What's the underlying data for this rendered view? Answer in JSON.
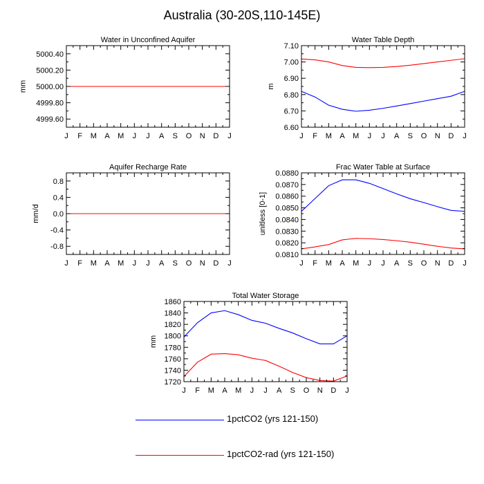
{
  "title": "Australia (30-20S,110-145E)",
  "colors": {
    "series1": "#0000ff",
    "series2": "#ff0000"
  },
  "legend": [
    {
      "label": "1pctCO2 (yrs 121-150)",
      "color": "#0000ff"
    },
    {
      "label": "1pctCO2-rad (yrs 121-150)",
      "color": "#ff0000"
    }
  ],
  "chart_data": [
    {
      "type": "line",
      "title": "Water in Unconfined Aquifer",
      "ylabel": "mm",
      "x": [
        "J",
        "F",
        "M",
        "A",
        "M",
        "J",
        "J",
        "A",
        "S",
        "O",
        "N",
        "D",
        "J"
      ],
      "ylim": [
        4999.5,
        5000.5
      ],
      "yticks": [
        4999.6,
        4999.8,
        5000.0,
        5000.2,
        5000.4
      ],
      "ytick_labels": [
        "4999.60",
        "4999.80",
        "5000.00",
        "5000.20",
        "5000.40"
      ],
      "series": [
        {
          "values": [
            5000,
            5000,
            5000,
            5000,
            5000,
            5000,
            5000,
            5000,
            5000,
            5000,
            5000,
            5000,
            5000
          ]
        },
        {
          "values": [
            5000,
            5000,
            5000,
            5000,
            5000,
            5000,
            5000,
            5000,
            5000,
            5000,
            5000,
            5000,
            5000
          ]
        }
      ]
    },
    {
      "type": "line",
      "title": "Water Table Depth",
      "ylabel": "m",
      "x": [
        "J",
        "F",
        "M",
        "A",
        "M",
        "J",
        "J",
        "A",
        "S",
        "O",
        "N",
        "D",
        "J"
      ],
      "ylim": [
        6.6,
        7.1
      ],
      "yticks": [
        6.6,
        6.7,
        6.8,
        6.9,
        7.0,
        7.1
      ],
      "ytick_labels": [
        "6.60",
        "6.70",
        "6.80",
        "6.90",
        "7.00",
        "7.10"
      ],
      "series": [
        {
          "values": [
            6.82,
            6.785,
            6.735,
            6.71,
            6.698,
            6.704,
            6.716,
            6.73,
            6.745,
            6.76,
            6.775,
            6.79,
            6.82
          ]
        },
        {
          "values": [
            7.018,
            7.013,
            7.0,
            6.978,
            6.967,
            6.965,
            6.967,
            6.972,
            6.98,
            6.99,
            7.0,
            7.01,
            7.02
          ]
        }
      ]
    },
    {
      "type": "line",
      "title": "Aquifer Recharge Rate",
      "ylabel": "mm/d",
      "x": [
        "J",
        "F",
        "M",
        "A",
        "M",
        "J",
        "J",
        "A",
        "S",
        "O",
        "N",
        "D",
        "J"
      ],
      "ylim": [
        -1.0,
        1.0
      ],
      "yticks": [
        -0.8,
        -0.4,
        0.0,
        0.4,
        0.8
      ],
      "ytick_labels": [
        "-0.8",
        "-0.4",
        "0.0",
        "0.4",
        "0.8"
      ],
      "series": [
        {
          "values": [
            0,
            0,
            0,
            0,
            0,
            0,
            0,
            0,
            0,
            0,
            0,
            0,
            0
          ]
        },
        {
          "values": [
            0,
            0,
            0,
            0,
            0,
            0,
            0,
            0,
            0,
            0,
            0,
            0,
            0
          ]
        }
      ]
    },
    {
      "type": "line",
      "title": "Frac Water Table at Surface",
      "ylabel": "unitless [0-1]",
      "x": [
        "J",
        "F",
        "M",
        "A",
        "M",
        "J",
        "J",
        "A",
        "S",
        "O",
        "N",
        "D",
        "J"
      ],
      "ylim": [
        0.081,
        0.088
      ],
      "yticks": [
        0.081,
        0.082,
        0.083,
        0.084,
        0.085,
        0.086,
        0.087,
        0.088
      ],
      "ytick_labels": [
        "0.0810",
        "0.0820",
        "0.0830",
        "0.0840",
        "0.0850",
        "0.0860",
        "0.0870",
        "0.0880"
      ],
      "series": [
        {
          "values": [
            0.0847,
            0.0858,
            0.0869,
            0.0874,
            0.0874,
            0.0871,
            0.08665,
            0.0862,
            0.08578,
            0.08545,
            0.0851,
            0.08478,
            0.0847
          ]
        },
        {
          "values": [
            0.08148,
            0.08165,
            0.08185,
            0.08225,
            0.08238,
            0.08235,
            0.08228,
            0.08218,
            0.08205,
            0.08188,
            0.0817,
            0.08155,
            0.08148
          ]
        }
      ]
    },
    {
      "type": "line",
      "title": "Total Water Storage",
      "ylabel": "mm",
      "x": [
        "J",
        "F",
        "M",
        "A",
        "M",
        "J",
        "J",
        "A",
        "S",
        "O",
        "N",
        "D",
        "J"
      ],
      "ylim": [
        1720,
        1860
      ],
      "yticks": [
        1720,
        1740,
        1760,
        1780,
        1800,
        1820,
        1840,
        1860
      ],
      "ytick_labels": [
        "1720",
        "1740",
        "1760",
        "1780",
        "1800",
        "1820",
        "1840",
        "1860"
      ],
      "series": [
        {
          "values": [
            1798,
            1823,
            1840,
            1844,
            1837,
            1827,
            1822,
            1813,
            1805,
            1795,
            1786,
            1786,
            1800
          ]
        },
        {
          "values": [
            1729,
            1754,
            1768,
            1769,
            1767,
            1761,
            1757,
            1747,
            1736,
            1727,
            1722,
            1721,
            1730
          ]
        }
      ]
    }
  ]
}
